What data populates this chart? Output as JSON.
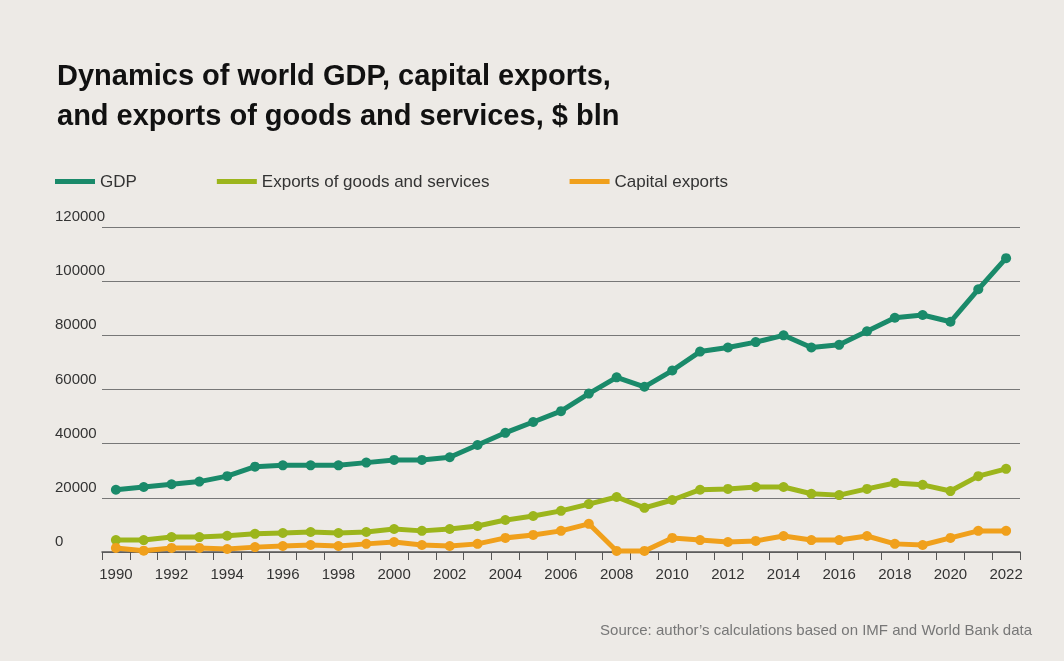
{
  "chart_data": {
    "type": "line",
    "title": "Dynamics of world GDP, capital exports,\nand exports of goods and services, $ bln",
    "categories": [
      "1990",
      null,
      "1992",
      null,
      "1994",
      null,
      "1996",
      null,
      "1998",
      null,
      "2000",
      null,
      "2002",
      null,
      "2004",
      null,
      "2006",
      null,
      "2008",
      null,
      "2010",
      null,
      "2012",
      null,
      "2014",
      null,
      "2016",
      null,
      "2018",
      null,
      "2020",
      null,
      "2022"
    ],
    "series": [
      {
        "name": "GDP",
        "color": "#1a8a6a",
        "values": [
          23000,
          24000,
          25000,
          26000,
          28000,
          31500,
          32000,
          32000,
          32000,
          33000,
          34000,
          34000,
          35000,
          39500,
          44000,
          48000,
          52000,
          58500,
          64500,
          61000,
          67000,
          74000,
          75500,
          77500,
          80000,
          75500,
          76500,
          81500,
          86500,
          87500,
          85000,
          97000,
          108500
        ]
      },
      {
        "name": "Exports of goods and services",
        "color": "#9cb51c",
        "values": [
          4400,
          4400,
          5500,
          5500,
          6000,
          6700,
          7000,
          7400,
          7000,
          7400,
          8500,
          7800,
          8500,
          9600,
          11800,
          13300,
          15200,
          17700,
          20300,
          16300,
          19200,
          23000,
          23300,
          24000,
          24000,
          21500,
          21000,
          23300,
          25500,
          24800,
          22500,
          28000,
          30700
        ]
      },
      {
        "name": "Capital exports",
        "color": "#f0a01c",
        "values": [
          1500,
          500,
          1500,
          1500,
          1100,
          1800,
          2200,
          2600,
          2200,
          3000,
          3700,
          2600,
          2200,
          3000,
          5200,
          6300,
          7800,
          10400,
          400,
          400,
          5200,
          4400,
          3700,
          4100,
          5900,
          4400,
          4400,
          5900,
          3000,
          2600,
          5200,
          7800,
          7800
        ]
      }
    ],
    "ylim": [
      0,
      120000
    ],
    "yticks": [
      0,
      20000,
      40000,
      60000,
      80000,
      100000,
      120000
    ],
    "grid": "y",
    "legend": "top left",
    "marker": "circle",
    "line_style": "solid",
    "annotations": [
      "Source: author’s calculations based on IMF and World Bank data"
    ]
  }
}
